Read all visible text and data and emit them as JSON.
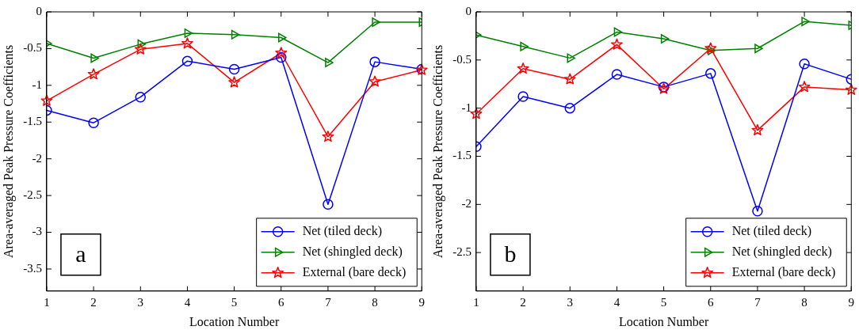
{
  "chart_data": [
    {
      "type": "line",
      "xlabel": "Location Number",
      "ylabel": "Area-averaged Peak Pressure Coefficients",
      "x": [
        1,
        2,
        3,
        4,
        5,
        6,
        7,
        8,
        9
      ],
      "xlim": [
        1,
        9
      ],
      "xticks": [
        1,
        2,
        3,
        4,
        5,
        6,
        7,
        8,
        9
      ],
      "ylim": [
        -3.8,
        0
      ],
      "yticks": [
        -3.5,
        -3,
        -2.5,
        -2,
        -1.5,
        -1,
        -0.5,
        0
      ],
      "grid": false,
      "legend": "bottom right",
      "annotations": [
        "a"
      ],
      "series": [
        {
          "name": "Net (tiled deck)",
          "color": "#0000ff",
          "marker": "circle",
          "values": [
            -1.34,
            -1.51,
            -1.16,
            -0.67,
            -0.78,
            -0.62,
            -2.62,
            -0.68,
            -0.78
          ]
        },
        {
          "name": "Net (shingled deck)",
          "color": "#008000",
          "marker": "triangle",
          "values": [
            -0.43,
            -0.63,
            -0.44,
            -0.29,
            -0.31,
            -0.35,
            -0.69,
            -0.14,
            -0.14
          ]
        },
        {
          "name": "External (bare deck)",
          "color": "#ff0000",
          "marker": "star",
          "values": [
            -1.21,
            -0.85,
            -0.51,
            -0.43,
            -0.96,
            -0.56,
            -1.7,
            -0.95,
            -0.79
          ]
        }
      ]
    },
    {
      "type": "line",
      "xlabel": "Location Number",
      "ylabel": "Area-averaged Peak Pressure Coefficients",
      "x": [
        1,
        2,
        3,
        4,
        5,
        6,
        7,
        8,
        9
      ],
      "xlim": [
        1,
        9
      ],
      "xticks": [
        1,
        2,
        3,
        4,
        5,
        6,
        7,
        8,
        9
      ],
      "ylim": [
        -2.9,
        0
      ],
      "yticks": [
        -2.5,
        -2,
        -1.5,
        -1,
        -0.5,
        0
      ],
      "grid": false,
      "legend": "bottom right",
      "annotations": [
        "b"
      ],
      "series": [
        {
          "name": "Net (tiled deck)",
          "color": "#0000ff",
          "marker": "circle",
          "values": [
            -1.4,
            -0.88,
            -1.0,
            -0.65,
            -0.78,
            -0.64,
            -2.07,
            -0.54,
            -0.7
          ]
        },
        {
          "name": "Net (shingled deck)",
          "color": "#008000",
          "marker": "triangle",
          "values": [
            -0.24,
            -0.36,
            -0.48,
            -0.21,
            -0.28,
            -0.4,
            -0.38,
            -0.1,
            -0.14
          ]
        },
        {
          "name": "External (bare deck)",
          "color": "#ff0000",
          "marker": "star",
          "values": [
            -1.06,
            -0.59,
            -0.7,
            -0.34,
            -0.8,
            -0.38,
            -1.23,
            -0.78,
            -0.81
          ]
        }
      ]
    }
  ]
}
